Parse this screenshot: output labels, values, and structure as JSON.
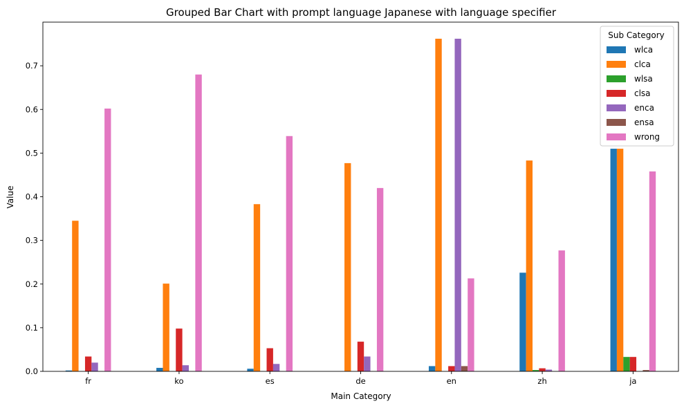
{
  "chart_data": {
    "type": "bar",
    "title": "Grouped Bar Chart with prompt language Japanese with language specifier",
    "xlabel": "Main Category",
    "ylabel": "Value",
    "categories": [
      "fr",
      "ko",
      "es",
      "de",
      "en",
      "zh",
      "ja"
    ],
    "ylim": [
      0,
      0.8
    ],
    "yticks": [
      0.0,
      0.1,
      0.2,
      0.3,
      0.4,
      0.5,
      0.6,
      0.7
    ],
    "ytick_labels": [
      "0.0",
      "0.1",
      "0.2",
      "0.3",
      "0.4",
      "0.5",
      "0.6",
      "0.7"
    ],
    "grid": false,
    "legend": {
      "title": "Sub Category",
      "placement": "top-right"
    },
    "series": [
      {
        "name": "wlca",
        "color": "#1f77b4",
        "values": [
          0.002,
          0.008,
          0.006,
          0.0,
          0.012,
          0.226,
          0.51
        ]
      },
      {
        "name": "clca",
        "color": "#ff7f0e",
        "values": [
          0.345,
          0.201,
          0.383,
          0.477,
          0.762,
          0.483,
          0.51
        ]
      },
      {
        "name": "wlsa",
        "color": "#2ca02c",
        "values": [
          0.0,
          0.0,
          0.0,
          0.0,
          0.0,
          0.003,
          0.033
        ]
      },
      {
        "name": "clsa",
        "color": "#d62728",
        "values": [
          0.034,
          0.098,
          0.053,
          0.068,
          0.012,
          0.007,
          0.033
        ]
      },
      {
        "name": "enca",
        "color": "#9467bd",
        "values": [
          0.02,
          0.014,
          0.017,
          0.034,
          0.762,
          0.004,
          0.0
        ]
      },
      {
        "name": "ensa",
        "color": "#8c564b",
        "values": [
          0.0,
          0.0,
          0.0,
          0.0,
          0.012,
          0.0,
          0.003
        ]
      },
      {
        "name": "wrong",
        "color": "#e377c2",
        "values": [
          0.602,
          0.68,
          0.539,
          0.42,
          0.213,
          0.277,
          0.458
        ]
      }
    ]
  }
}
